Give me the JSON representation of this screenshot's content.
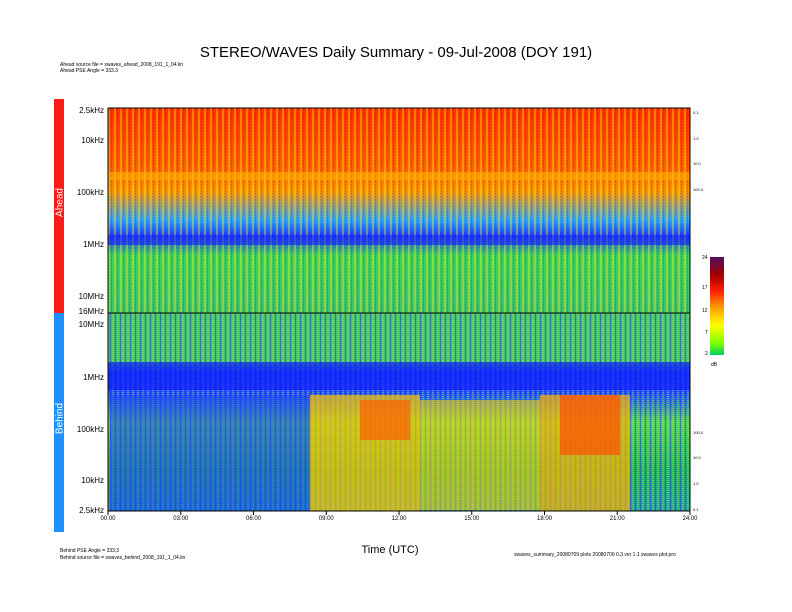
{
  "chart_data": {
    "type": "heatmap",
    "title": "STEREO/WAVES Daily Summary - 09-Jul-2008 (DOY 191)",
    "xlabel": "Time (UTC)",
    "x_ticks": [
      "00:00",
      "03:00",
      "06:00",
      "09:00",
      "12:00",
      "15:00",
      "18:00",
      "21:00",
      "24:00"
    ],
    "panels": [
      {
        "name": "Ahead",
        "color": "#ff1a1a",
        "y_ticks": [
          "2.5kHz",
          "10kHz",
          "100kHz",
          "1MHz",
          "10MHz",
          "16MHz"
        ],
        "right_ticks": [
          "0.1",
          "1.0",
          "10.0",
          "100.0"
        ],
        "source_line": "Ahead source file = swaves_ahead_2008_191_1_04.lin",
        "pse_line": "Ahead PSE Angle = 333.3"
      },
      {
        "name": "Behind",
        "color": "#1e90ff",
        "y_ticks": [
          "10MHz",
          "1MHz",
          "100kHz",
          "10kHz",
          "2.5kHz"
        ],
        "right_ticks": [
          "100.0",
          "10.0",
          "1.0",
          "0.1"
        ],
        "source_line": "Behind source file = swaves_behind_2008_191_1_04.lin",
        "pse_line": "Behind PSE Angle = 333.3"
      }
    ],
    "colorbar": {
      "ticks": [
        "24",
        "17",
        "12",
        "7",
        "2"
      ],
      "unit": "dB",
      "range": [
        2,
        24
      ]
    },
    "footer": "swaves_summary_20080709 plots 20080709 0.3 ver 1.1 swaves plot.pro"
  }
}
